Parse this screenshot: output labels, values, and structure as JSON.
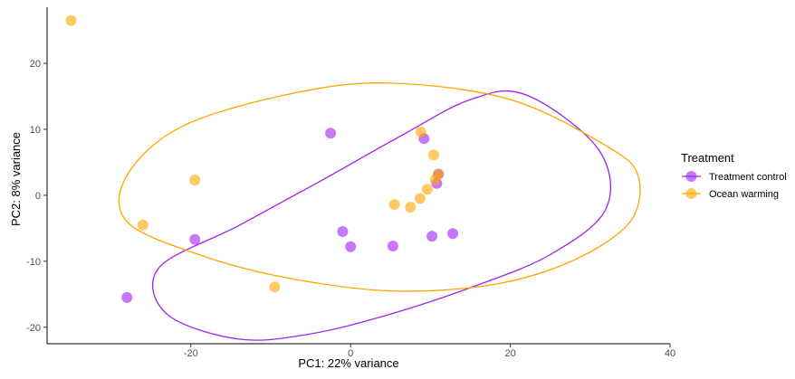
{
  "chart_data": {
    "type": "scatter",
    "title": "",
    "xlabel": "PC1: 22% variance",
    "ylabel": "PC2: 8% variance",
    "xlim": [
      -38,
      40
    ],
    "ylim": [
      -22.5,
      28.5
    ],
    "xticks": [
      -20,
      0,
      20,
      40
    ],
    "yticks": [
      -20,
      -10,
      0,
      10,
      20
    ],
    "xtick_labels": [
      "-20",
      "0",
      "20",
      "40"
    ],
    "ytick_labels": [
      "-20",
      "-10",
      "0",
      "10",
      "20"
    ],
    "grid": false,
    "legend": {
      "title": "Treatment",
      "position": "right"
    },
    "series": [
      {
        "name": "Treatment control",
        "color": "#a020f0",
        "points": [
          [
            -28,
            -15.5
          ],
          [
            -19.5,
            -6.7
          ],
          [
            -2.5,
            9.4
          ],
          [
            -1,
            -5.5
          ],
          [
            0,
            -7.8
          ],
          [
            5.3,
            -7.7
          ],
          [
            9.2,
            8.6
          ],
          [
            10.2,
            -6.2
          ],
          [
            10.8,
            1.8
          ],
          [
            11.0,
            3.2
          ],
          [
            12.8,
            -5.8
          ]
        ],
        "ellipse": {
          "points": [
            [
              -24,
              -11
            ],
            [
              -14,
              -4.6
            ],
            [
              -4,
              2
            ],
            [
              6,
              8.8
            ],
            [
              15,
              14.5
            ],
            [
              22,
              15.2
            ],
            [
              31,
              7
            ],
            [
              32,
              -2
            ],
            [
              25,
              -9
            ],
            [
              15,
              -14
            ],
            [
              5,
              -18
            ],
            [
              -5,
              -21
            ],
            [
              -14,
              -21.8
            ],
            [
              -23,
              -18
            ],
            [
              -24,
              -11
            ]
          ]
        }
      },
      {
        "name": "Ocean warming",
        "color": "#ffa500",
        "points": [
          [
            -35,
            26.5
          ],
          [
            -26,
            -4.5
          ],
          [
            -19.5,
            2.3
          ],
          [
            -9.5,
            -13.9
          ],
          [
            5.5,
            -1.4
          ],
          [
            7.5,
            -1.8
          ],
          [
            8.7,
            -0.5
          ],
          [
            8.8,
            9.6
          ],
          [
            9.6,
            0.9
          ],
          [
            10.4,
            6.1
          ],
          [
            10.6,
            2.4
          ],
          [
            11.0,
            3.2
          ]
        ],
        "ellipse": {
          "points": [
            [
              -28,
              3
            ],
            [
              -21,
              10.5
            ],
            [
              -7,
              15.5
            ],
            [
              5,
              17
            ],
            [
              20,
              14.5
            ],
            [
              32,
              7.5
            ],
            [
              36,
              3
            ],
            [
              35,
              -4
            ],
            [
              28,
              -9.8
            ],
            [
              18,
              -13.5
            ],
            [
              5,
              -14.5
            ],
            [
              -8,
              -12.5
            ],
            [
              -19,
              -9
            ],
            [
              -28,
              -4
            ],
            [
              -28,
              3
            ]
          ]
        }
      }
    ]
  }
}
